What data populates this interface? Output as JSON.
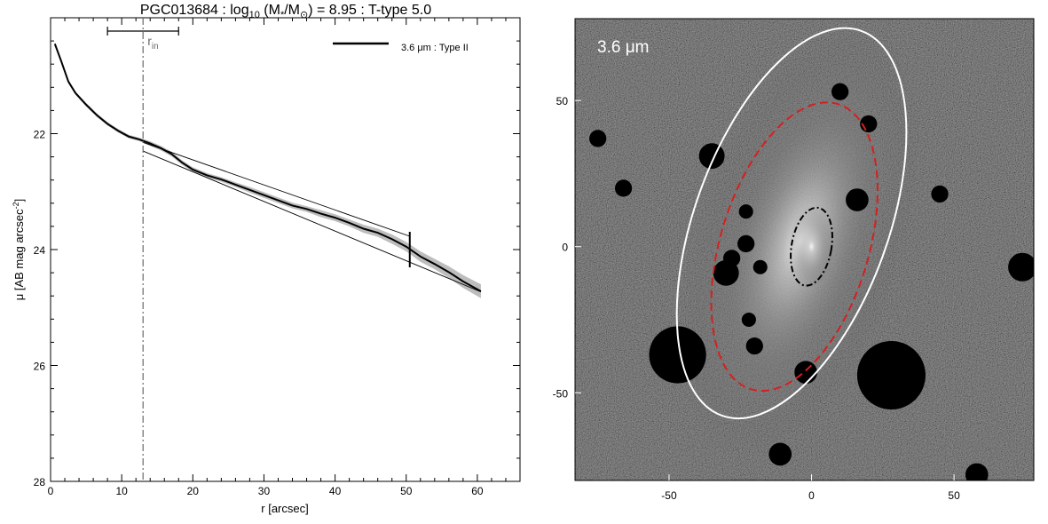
{
  "figure": {
    "title": "PGC013684 : log",
    "title_sub": "10",
    "title_mid": " (M",
    "title_sub2": "*",
    "title_mid2": "/M",
    "title_sub3": "⊙",
    "title_end": ") = 8.95 : T-type 5.0"
  },
  "chart_data": [
    {
      "type": "line",
      "xlabel": "r [arcsec]",
      "ylabel_main": "μ [AB mag arcsec",
      "ylabel_sup": "-2",
      "ylabel_end": "]",
      "xlim": [
        0,
        66
      ],
      "ylim": [
        28,
        20.0
      ],
      "y_inverted": true,
      "xticks": [
        0,
        10,
        20,
        30,
        40,
        50,
        60
      ],
      "yticks": [
        22,
        24,
        26,
        28
      ],
      "legend_placement": "top-right",
      "legend": {
        "label": "3.6 μm : Type II"
      },
      "r_in": {
        "x": 13,
        "label": "r",
        "label_sub": "in",
        "errbar": [
          8,
          18
        ]
      },
      "break_marker": {
        "x": 50.5,
        "y": 24.0
      },
      "series": [
        {
          "name": "3.6 μm : Type II",
          "x": [
            0.6,
            1.5,
            2.5,
            3.5,
            5,
            6.5,
            8,
            9.5,
            11,
            12.5,
            14,
            15.5,
            17,
            18.5,
            20,
            22,
            24,
            26,
            28,
            30,
            32,
            34,
            36,
            38,
            40,
            42,
            44,
            46,
            48,
            50,
            52,
            54,
            56,
            58,
            60.5
          ],
          "values": [
            20.45,
            20.75,
            21.1,
            21.3,
            21.5,
            21.68,
            21.83,
            21.95,
            22.05,
            22.1,
            22.17,
            22.25,
            22.35,
            22.5,
            22.62,
            22.72,
            22.79,
            22.88,
            22.97,
            23.06,
            23.15,
            23.24,
            23.3,
            23.38,
            23.45,
            23.54,
            23.64,
            23.71,
            23.82,
            23.95,
            24.12,
            24.25,
            24.39,
            24.55,
            24.72
          ],
          "band": [
            0.03,
            0.03,
            0.03,
            0.03,
            0.03,
            0.03,
            0.03,
            0.03,
            0.03,
            0.03,
            0.04,
            0.04,
            0.04,
            0.04,
            0.04,
            0.04,
            0.04,
            0.04,
            0.05,
            0.05,
            0.05,
            0.05,
            0.05,
            0.06,
            0.06,
            0.06,
            0.07,
            0.07,
            0.08,
            0.08,
            0.09,
            0.09,
            0.1,
            0.11,
            0.12
          ]
        }
      ],
      "fits": [
        {
          "name": "inner",
          "x": [
            13,
            50.5
          ],
          "values": [
            22.15,
            23.77
          ]
        },
        {
          "name": "outer",
          "x": [
            13,
            60.5
          ],
          "values": [
            22.3,
            24.73
          ]
        }
      ]
    },
    {
      "type": "image",
      "label": "3.6 μm",
      "xlim": [
        -83,
        78
      ],
      "ylim": [
        -80,
        78
      ],
      "xticks": [
        -50,
        0,
        50
      ],
      "yticks": [
        -50,
        0,
        50
      ],
      "ellipses": [
        {
          "name": "outer-isophote",
          "color": "#ffffff",
          "style": "solid",
          "cx": -7,
          "cy": 8,
          "rx": 34,
          "ry": 70,
          "angle": 20
        },
        {
          "name": "break-radius",
          "color": "#d42020",
          "style": "dashed",
          "cx": -6,
          "cy": 0,
          "rx": 26,
          "ry": 51,
          "angle": 17
        },
        {
          "name": "inner-radius",
          "color": "#000000",
          "style": "dashdot",
          "cx": 0,
          "cy": 0,
          "rx": 7,
          "ry": 13.5,
          "angle": 10
        }
      ],
      "masks": [
        {
          "x": -47,
          "y": -37,
          "r": 10
        },
        {
          "x": 28,
          "y": -44,
          "r": 12
        },
        {
          "x": -35,
          "y": 31,
          "r": 4.5
        },
        {
          "x": -30,
          "y": -9,
          "r": 4.5
        },
        {
          "x": 10,
          "y": 53,
          "r": 3
        },
        {
          "x": 20,
          "y": 42,
          "r": 3
        },
        {
          "x": 16,
          "y": 16,
          "r": 4
        },
        {
          "x": -2,
          "y": -43,
          "r": 4
        },
        {
          "x": -23,
          "y": 12,
          "r": 2.5
        },
        {
          "x": -18,
          "y": -7,
          "r": 2.5
        },
        {
          "x": -20,
          "y": -34,
          "r": 3
        },
        {
          "x": -22,
          "y": -25,
          "r": 2.5
        },
        {
          "x": -11,
          "y": -71,
          "r": 4
        },
        {
          "x": -23,
          "y": 1,
          "r": 3
        },
        {
          "x": -28,
          "y": -4,
          "r": 3
        },
        {
          "x": 74,
          "y": -7,
          "r": 5
        },
        {
          "x": -75,
          "y": 37,
          "r": 3
        },
        {
          "x": 58,
          "y": -78,
          "r": 4
        },
        {
          "x": -66,
          "y": 20,
          "r": 3
        },
        {
          "x": 45,
          "y": 18,
          "r": 3
        }
      ]
    }
  ]
}
